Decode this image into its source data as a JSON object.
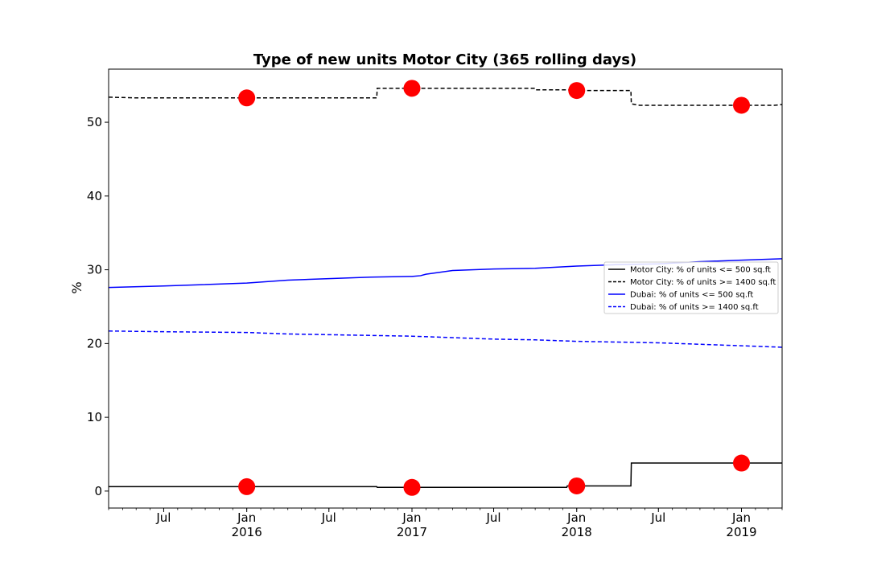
{
  "chart_data": {
    "type": "line",
    "title": "Type of new units Motor City (365 rolling days)",
    "xlabel": "",
    "ylabel": "%",
    "xlim": [
      "2015-03-01",
      "2019-04-01"
    ],
    "ylim": [
      -2.3,
      57.2
    ],
    "y_ticks": [
      0,
      10,
      20,
      30,
      40,
      50
    ],
    "x_ticks": [
      {
        "date": "2015-07-01",
        "label": "Jul",
        "label2": ""
      },
      {
        "date": "2016-01-01",
        "label": "Jan",
        "label2": "2016"
      },
      {
        "date": "2016-07-01",
        "label": "Jul",
        "label2": ""
      },
      {
        "date": "2017-01-01",
        "label": "Jan",
        "label2": "2017"
      },
      {
        "date": "2017-07-01",
        "label": "Jul",
        "label2": ""
      },
      {
        "date": "2018-01-01",
        "label": "Jan",
        "label2": "2018"
      },
      {
        "date": "2018-07-01",
        "label": "Jul",
        "label2": ""
      },
      {
        "date": "2019-01-01",
        "label": "Jan",
        "label2": "2019"
      }
    ],
    "grid": false,
    "legend_position": "center-right",
    "series": [
      {
        "name": "Motor City: % of units <= 500 sq.ft",
        "color": "#000000",
        "dash": "solid",
        "step": true,
        "points": [
          [
            "2015-03-01",
            0.6
          ],
          [
            "2016-10-15",
            0.6
          ],
          [
            "2016-10-16",
            0.5
          ],
          [
            "2017-12-10",
            0.5
          ],
          [
            "2017-12-11",
            0.7
          ],
          [
            "2018-05-01",
            0.7
          ],
          [
            "2018-05-02",
            3.8
          ],
          [
            "2019-04-01",
            3.8
          ]
        ]
      },
      {
        "name": "Motor City: % of units >= 1400 sq.ft",
        "color": "#000000",
        "dash": "dashed",
        "step": true,
        "points": [
          [
            "2015-03-01",
            53.4
          ],
          [
            "2015-05-01",
            53.3
          ],
          [
            "2016-10-15",
            53.3
          ],
          [
            "2016-10-16",
            54.6
          ],
          [
            "2017-10-01",
            54.6
          ],
          [
            "2017-10-02",
            54.4
          ],
          [
            "2017-12-20",
            54.4
          ],
          [
            "2017-12-21",
            54.3
          ],
          [
            "2018-05-01",
            54.3
          ],
          [
            "2018-05-02",
            52.5
          ],
          [
            "2018-05-20",
            52.3
          ],
          [
            "2019-03-15",
            52.3
          ],
          [
            "2019-04-01",
            52.4
          ]
        ]
      },
      {
        "name": "Dubai: % of units <= 500 sq.ft",
        "color": "#0000ff",
        "dash": "solid",
        "step": false,
        "points": [
          [
            "2015-03-01",
            27.6
          ],
          [
            "2015-07-01",
            27.8
          ],
          [
            "2016-01-01",
            28.2
          ],
          [
            "2016-04-01",
            28.6
          ],
          [
            "2016-07-01",
            28.8
          ],
          [
            "2016-10-01",
            29.0
          ],
          [
            "2017-01-01",
            29.1
          ],
          [
            "2017-01-20",
            29.2
          ],
          [
            "2017-02-01",
            29.4
          ],
          [
            "2017-04-01",
            29.9
          ],
          [
            "2017-07-01",
            30.1
          ],
          [
            "2017-10-01",
            30.2
          ],
          [
            "2018-01-01",
            30.5
          ],
          [
            "2018-04-01",
            30.7
          ],
          [
            "2018-07-01",
            30.8
          ],
          [
            "2018-10-01",
            31.1
          ],
          [
            "2019-01-01",
            31.3
          ],
          [
            "2019-04-01",
            31.5
          ]
        ]
      },
      {
        "name": "Dubai: % of units >= 1400 sq.ft",
        "color": "#0000ff",
        "dash": "dashed",
        "step": false,
        "points": [
          [
            "2015-03-01",
            21.7
          ],
          [
            "2015-07-01",
            21.6
          ],
          [
            "2016-01-01",
            21.5
          ],
          [
            "2016-04-01",
            21.3
          ],
          [
            "2016-07-01",
            21.2
          ],
          [
            "2016-10-01",
            21.1
          ],
          [
            "2017-01-01",
            21.0
          ],
          [
            "2017-04-01",
            20.8
          ],
          [
            "2017-07-01",
            20.6
          ],
          [
            "2017-10-01",
            20.5
          ],
          [
            "2018-01-01",
            20.3
          ],
          [
            "2018-04-01",
            20.2
          ],
          [
            "2018-07-01",
            20.1
          ],
          [
            "2018-10-01",
            19.9
          ],
          [
            "2019-01-01",
            19.7
          ],
          [
            "2019-04-01",
            19.5
          ]
        ]
      }
    ],
    "markers": {
      "color": "#ff0000",
      "points": [
        [
          "2016-01-01",
          53.3
        ],
        [
          "2017-01-01",
          54.6
        ],
        [
          "2018-01-01",
          54.3
        ],
        [
          "2019-01-01",
          52.3
        ],
        [
          "2016-01-01",
          0.6
        ],
        [
          "2017-01-01",
          0.5
        ],
        [
          "2018-01-01",
          0.7
        ],
        [
          "2019-01-01",
          3.8
        ]
      ]
    }
  }
}
